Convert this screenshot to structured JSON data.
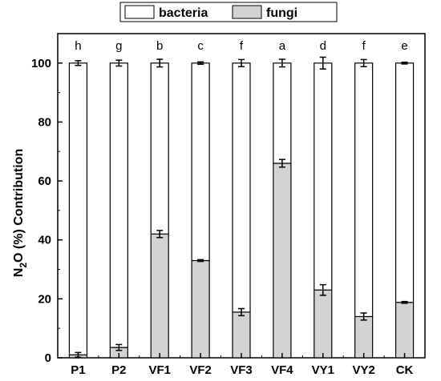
{
  "chart_data": {
    "type": "bar",
    "stacked": true,
    "categories": [
      "P1",
      "P2",
      "VF1",
      "VF2",
      "VF3",
      "VF4",
      "VY1",
      "VY2",
      "CK"
    ],
    "series": [
      {
        "name": "fungi",
        "color": "#d3d3d3",
        "values": [
          1,
          3.5,
          42,
          33,
          15.5,
          66,
          23,
          14,
          18.8
        ],
        "errors": [
          0.8,
          1.0,
          1.2,
          0.3,
          1.2,
          1.3,
          1.8,
          1.2,
          0.3
        ]
      },
      {
        "name": "bacteria",
        "color": "#ffffff",
        "values": [
          99,
          96.5,
          58,
          67,
          84.5,
          34,
          77,
          86,
          81.2
        ],
        "errors": [
          0.8,
          1.0,
          1.3,
          0.4,
          1.2,
          1.3,
          2.0,
          1.2,
          0.3
        ]
      }
    ],
    "significance_letters": [
      "h",
      "g",
      "b",
      "c",
      "f",
      "a",
      "d",
      "f",
      "e"
    ],
    "ylabel_parts": {
      "main": "N",
      "sub": "2",
      "rest": "O  (%)  Contribution"
    },
    "xlabel": "",
    "ylim": [
      0,
      110
    ],
    "yticks": [
      0,
      20,
      40,
      60,
      80,
      100
    ],
    "legend": {
      "entries": [
        "bacteria",
        "fungi"
      ],
      "placement": "top-center"
    },
    "grid": false
  }
}
